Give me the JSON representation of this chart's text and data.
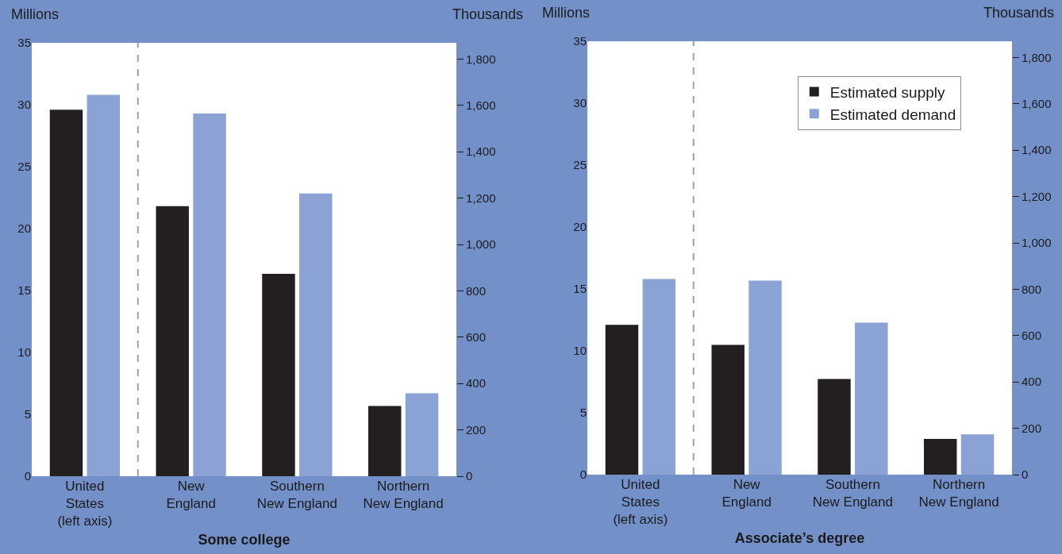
{
  "chart_data": [
    {
      "type": "bar",
      "xlabel": "Some college",
      "ylabel": "Millions",
      "y2label": "Thousands",
      "categories": [
        "United\nStates\n(left axis)",
        "New\nEngland",
        "Southern\nNew England",
        "Northern\nNew England"
      ],
      "series": [
        {
          "color": "#231f20",
          "values": [
            29.6,
            null,
            null,
            null
          ]
        },
        {
          "color": "#8aa2d4",
          "values": [
            30.8,
            null,
            null,
            null
          ]
        },
        {
          "color": "#231f20",
          "axis": "y2",
          "values": [
            null,
            1165,
            873,
            303
          ]
        },
        {
          "color": "#8aa2d4",
          "axis": "y2",
          "values": [
            null,
            1565,
            1220,
            358
          ]
        }
      ],
      "ylim": [
        0,
        35
      ],
      "yticks": [
        0,
        5,
        10,
        15,
        20,
        25,
        30,
        35
      ],
      "y2lim": [
        0,
        1870
      ],
      "y2ticks": [
        0,
        200,
        400,
        600,
        800,
        {
          "value": 1000,
          "label": "1,000"
        },
        {
          "value": 1200,
          "label": "1,200"
        },
        {
          "value": 1400,
          "label": "1,400"
        },
        {
          "value": 1600,
          "label": "1,600"
        },
        {
          "value": 1800,
          "label": "1,800"
        }
      ],
      "grid": false,
      "legend": false
    },
    {
      "type": "bar",
      "xlabel": "Associate’s degree",
      "ylabel": "Millions",
      "y2label": "Thousands",
      "categories": [
        "United\nStates\n(left axis)",
        "New\nEngland",
        "Southern\nNew England",
        "Northern\nNew England"
      ],
      "series": [
        {
          "name": "Estimated supply",
          "color": "#231f20",
          "values": [
            12.1,
            null,
            null,
            null
          ]
        },
        {
          "name": "Estimated demand",
          "color": "#8aa2d4",
          "values": [
            15.8,
            null,
            null,
            null
          ]
        },
        {
          "color": "#231f20",
          "axis": "y2",
          "values": [
            null,
            560,
            413,
            154
          ]
        },
        {
          "color": "#8aa2d4",
          "axis": "y2",
          "values": [
            null,
            837,
            656,
            174
          ]
        }
      ],
      "ylim": [
        0,
        35
      ],
      "yticks": [
        0,
        5,
        10,
        15,
        20,
        25,
        30,
        35
      ],
      "y2lim": [
        0,
        1870
      ],
      "y2ticks": [
        0,
        200,
        400,
        600,
        800,
        {
          "value": 1000,
          "label": "1,000"
        },
        {
          "value": 1200,
          "label": "1,200"
        },
        {
          "value": 1400,
          "label": "1,400"
        },
        {
          "value": 1600,
          "label": "1,600"
        },
        {
          "value": 1800,
          "label": "1,800"
        }
      ],
      "grid": false,
      "legend": "top right"
    }
  ]
}
